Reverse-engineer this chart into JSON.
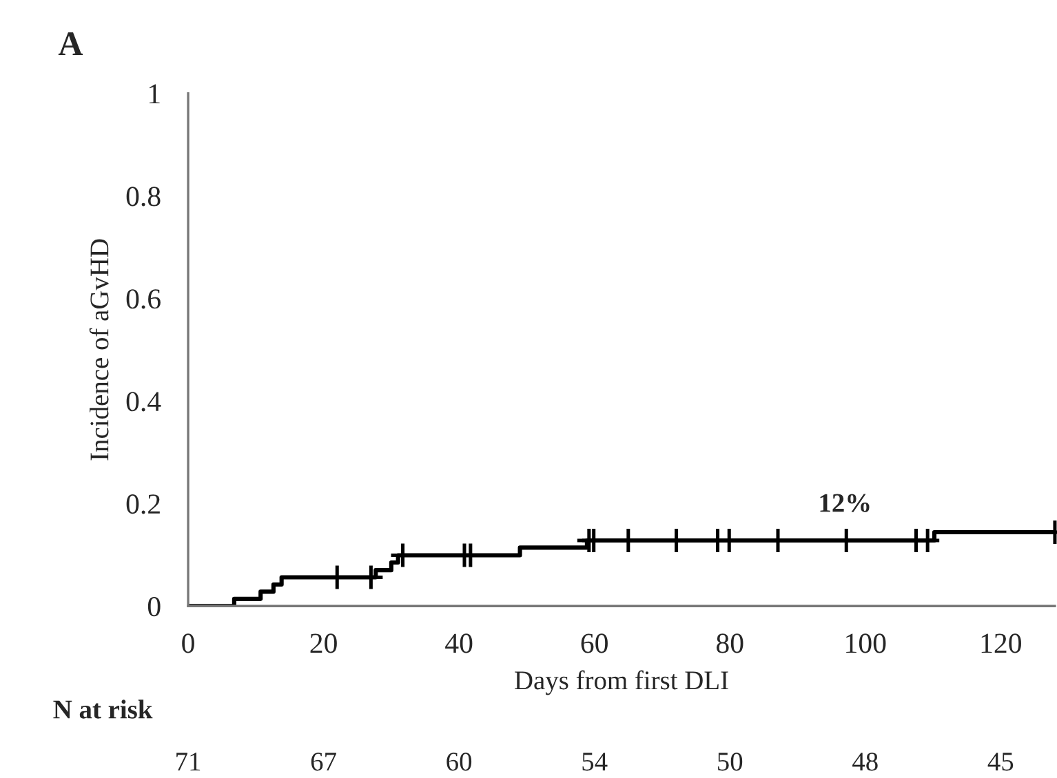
{
  "chart_data": {
    "type": "step",
    "title": "A",
    "xlabel": "Days from first DLI",
    "ylabel": "Incidence of aGvHD",
    "xlim": [
      0,
      128
    ],
    "xticks": [
      0,
      20,
      40,
      60,
      80,
      100,
      120
    ],
    "ylim": [
      0,
      1
    ],
    "yticks": [
      0,
      0.2,
      0.4,
      0.6,
      0.8,
      1
    ],
    "grid": false,
    "series": [
      {
        "x": [
          0,
          6.8,
          10.7,
          12.6,
          13.8,
          27.7,
          30,
          31,
          49,
          58.9,
          110.2,
          128
        ],
        "values": [
          0,
          0.014,
          0.028,
          0.042,
          0.056,
          0.07,
          0.085,
          0.099,
          0.114,
          0.128,
          0.144,
          0.144
        ],
        "color": "#000000"
      },
      {
        "type": "scatter",
        "marker": "cross",
        "x": [
          22,
          27,
          31.7,
          40.8,
          41.7,
          59.2,
          59.9,
          65,
          72.1,
          78.2,
          79.9,
          87.1,
          97.2,
          107.5,
          109.2,
          128
        ],
        "values": [
          0.056,
          0.056,
          0.099,
          0.099,
          0.099,
          0.128,
          0.128,
          0.128,
          0.128,
          0.128,
          0.128,
          0.128,
          0.128,
          0.128,
          0.128,
          0.144
        ],
        "color": "#000000"
      }
    ],
    "annotations": [
      {
        "text": "12%",
        "x": 97,
        "y": 0.128
      },
      "N at risk",
      "71",
      "67",
      "60",
      "54",
      "50",
      "48",
      "45"
    ]
  }
}
